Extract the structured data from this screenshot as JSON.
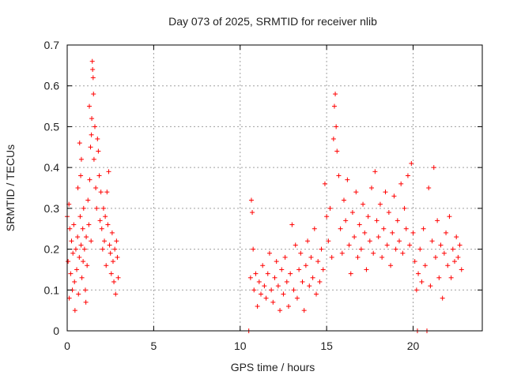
{
  "chart_data": {
    "type": "scatter",
    "title": "Day 073 of 2025, SRMTID for receiver nlib",
    "xlabel": "GPS time / hours",
    "ylabel": "SRMTID / TECUs",
    "xlim": [
      0,
      24
    ],
    "ylim": [
      0,
      0.7
    ],
    "grid": true,
    "marker": "+",
    "series_color": "#ff0000",
    "x_ticks": [
      {
        "value": 0,
        "label": "0"
      },
      {
        "value": 5,
        "label": "5"
      },
      {
        "value": 10,
        "label": "10"
      },
      {
        "value": 15,
        "label": "15"
      },
      {
        "value": 20,
        "label": "20"
      }
    ],
    "y_ticks": [
      {
        "value": 0,
        "label": "0"
      },
      {
        "value": 0.1,
        "label": "0.1"
      },
      {
        "value": 0.2,
        "label": "0.2"
      },
      {
        "value": 0.3,
        "label": "0.3"
      },
      {
        "value": 0.4,
        "label": "0.4"
      },
      {
        "value": 0.5,
        "label": "0.5"
      },
      {
        "value": 0.6,
        "label": "0.6"
      },
      {
        "value": 0.7,
        "label": "0.7"
      }
    ],
    "points": [
      [
        0.0,
        0.28
      ],
      [
        0.05,
        0.17
      ],
      [
        0.1,
        0.31
      ],
      [
        0.12,
        0.08
      ],
      [
        0.15,
        0.25
      ],
      [
        0.2,
        0.14
      ],
      [
        0.25,
        0.22
      ],
      [
        0.3,
        0.1
      ],
      [
        0.33,
        0.19
      ],
      [
        0.38,
        0.26
      ],
      [
        0.42,
        0.12
      ],
      [
        0.45,
        0.05
      ],
      [
        0.5,
        0.2
      ],
      [
        0.55,
        0.15
      ],
      [
        0.6,
        0.23
      ],
      [
        0.62,
        0.35
      ],
      [
        0.65,
        0.09
      ],
      [
        0.7,
        0.18
      ],
      [
        0.72,
        0.46
      ],
      [
        0.75,
        0.28
      ],
      [
        0.78,
        0.38
      ],
      [
        0.8,
        0.21
      ],
      [
        0.82,
        0.42
      ],
      [
        0.85,
        0.13
      ],
      [
        0.9,
        0.25
      ],
      [
        0.92,
        0.17
      ],
      [
        0.95,
        0.3
      ],
      [
        1.0,
        0.2
      ],
      [
        1.05,
        0.1
      ],
      [
        1.08,
        0.07
      ],
      [
        1.1,
        0.23
      ],
      [
        1.15,
        0.16
      ],
      [
        1.2,
        0.32
      ],
      [
        1.25,
        0.26
      ],
      [
        1.28,
        0.55
      ],
      [
        1.3,
        0.37
      ],
      [
        1.35,
        0.45
      ],
      [
        1.38,
        0.22
      ],
      [
        1.4,
        0.48
      ],
      [
        1.42,
        0.52
      ],
      [
        1.45,
        0.66
      ],
      [
        1.47,
        0.64
      ],
      [
        1.5,
        0.62
      ],
      [
        1.52,
        0.58
      ],
      [
        1.55,
        0.42
      ],
      [
        1.6,
        0.5
      ],
      [
        1.65,
        0.35
      ],
      [
        1.7,
        0.3
      ],
      [
        1.75,
        0.47
      ],
      [
        1.8,
        0.44
      ],
      [
        1.85,
        0.38
      ],
      [
        1.9,
        0.27
      ],
      [
        1.95,
        0.34
      ],
      [
        2.0,
        0.25
      ],
      [
        2.05,
        0.2
      ],
      [
        2.1,
        0.3
      ],
      [
        2.15,
        0.22
      ],
      [
        2.2,
        0.28
      ],
      [
        2.25,
        0.16
      ],
      [
        2.3,
        0.34
      ],
      [
        2.35,
        0.26
      ],
      [
        2.4,
        0.39
      ],
      [
        2.45,
        0.21
      ],
      [
        2.5,
        0.19
      ],
      [
        2.55,
        0.14
      ],
      [
        2.6,
        0.24
      ],
      [
        2.65,
        0.17
      ],
      [
        2.7,
        0.12
      ],
      [
        2.75,
        0.2
      ],
      [
        2.8,
        0.09
      ],
      [
        2.85,
        0.22
      ],
      [
        2.9,
        0.18
      ],
      [
        2.95,
        0.13
      ],
      [
        10.5,
        0.0
      ],
      [
        10.6,
        0.13
      ],
      [
        10.65,
        0.32
      ],
      [
        10.7,
        0.29
      ],
      [
        10.75,
        0.2
      ],
      [
        10.8,
        0.1
      ],
      [
        10.9,
        0.14
      ],
      [
        11.0,
        0.06
      ],
      [
        11.1,
        0.12
      ],
      [
        11.2,
        0.09
      ],
      [
        11.3,
        0.16
      ],
      [
        11.4,
        0.11
      ],
      [
        11.5,
        0.08
      ],
      [
        11.6,
        0.14
      ],
      [
        11.7,
        0.19
      ],
      [
        11.8,
        0.1
      ],
      [
        11.9,
        0.07
      ],
      [
        12.0,
        0.13
      ],
      [
        12.1,
        0.17
      ],
      [
        12.2,
        0.11
      ],
      [
        12.3,
        0.05
      ],
      [
        12.4,
        0.15
      ],
      [
        12.5,
        0.09
      ],
      [
        12.6,
        0.18
      ],
      [
        12.7,
        0.12
      ],
      [
        12.8,
        0.06
      ],
      [
        12.9,
        0.14
      ],
      [
        13.0,
        0.26
      ],
      [
        13.1,
        0.1
      ],
      [
        13.2,
        0.21
      ],
      [
        13.3,
        0.08
      ],
      [
        13.4,
        0.15
      ],
      [
        13.5,
        0.19
      ],
      [
        13.6,
        0.12
      ],
      [
        13.7,
        0.05
      ],
      [
        13.8,
        0.16
      ],
      [
        13.9,
        0.22
      ],
      [
        14.0,
        0.11
      ],
      [
        14.1,
        0.18
      ],
      [
        14.2,
        0.13
      ],
      [
        14.3,
        0.25
      ],
      [
        14.4,
        0.09
      ],
      [
        14.5,
        0.17
      ],
      [
        14.6,
        0.12
      ],
      [
        14.7,
        0.2
      ],
      [
        14.8,
        0.15
      ],
      [
        14.9,
        0.36
      ],
      [
        15.0,
        0.28
      ],
      [
        15.1,
        0.22
      ],
      [
        15.2,
        0.3
      ],
      [
        15.3,
        0.18
      ],
      [
        15.4,
        0.47
      ],
      [
        15.45,
        0.55
      ],
      [
        15.5,
        0.58
      ],
      [
        15.55,
        0.5
      ],
      [
        15.6,
        0.44
      ],
      [
        15.7,
        0.38
      ],
      [
        15.8,
        0.25
      ],
      [
        15.9,
        0.19
      ],
      [
        16.0,
        0.32
      ],
      [
        16.1,
        0.27
      ],
      [
        16.2,
        0.37
      ],
      [
        16.3,
        0.21
      ],
      [
        16.4,
        0.14
      ],
      [
        16.5,
        0.29
      ],
      [
        16.6,
        0.23
      ],
      [
        16.7,
        0.34
      ],
      [
        16.8,
        0.18
      ],
      [
        16.9,
        0.26
      ],
      [
        17.0,
        0.2
      ],
      [
        17.1,
        0.31
      ],
      [
        17.2,
        0.24
      ],
      [
        17.3,
        0.15
      ],
      [
        17.4,
        0.28
      ],
      [
        17.5,
        0.22
      ],
      [
        17.6,
        0.35
      ],
      [
        17.7,
        0.19
      ],
      [
        17.8,
        0.39
      ],
      [
        17.9,
        0.27
      ],
      [
        18.0,
        0.23
      ],
      [
        18.1,
        0.31
      ],
      [
        18.2,
        0.18
      ],
      [
        18.3,
        0.25
      ],
      [
        18.4,
        0.34
      ],
      [
        18.5,
        0.21
      ],
      [
        18.6,
        0.29
      ],
      [
        18.7,
        0.16
      ],
      [
        18.8,
        0.24
      ],
      [
        18.9,
        0.33
      ],
      [
        19.0,
        0.2
      ],
      [
        19.1,
        0.27
      ],
      [
        19.2,
        0.22
      ],
      [
        19.3,
        0.36
      ],
      [
        19.4,
        0.19
      ],
      [
        19.5,
        0.3
      ],
      [
        19.6,
        0.25
      ],
      [
        19.7,
        0.38
      ],
      [
        19.8,
        0.21
      ],
      [
        19.9,
        0.41
      ],
      [
        20.0,
        0.24
      ],
      [
        20.1,
        0.17
      ],
      [
        20.2,
        0.1
      ],
      [
        20.25,
        0.0
      ],
      [
        20.3,
        0.14
      ],
      [
        20.4,
        0.2
      ],
      [
        20.5,
        0.12
      ],
      [
        20.6,
        0.25
      ],
      [
        20.7,
        0.16
      ],
      [
        20.8,
        0.0
      ],
      [
        20.9,
        0.35
      ],
      [
        21.0,
        0.11
      ],
      [
        21.1,
        0.22
      ],
      [
        21.2,
        0.4
      ],
      [
        21.3,
        0.18
      ],
      [
        21.4,
        0.27
      ],
      [
        21.5,
        0.13
      ],
      [
        21.6,
        0.21
      ],
      [
        21.7,
        0.08
      ],
      [
        21.8,
        0.19
      ],
      [
        21.9,
        0.24
      ],
      [
        22.0,
        0.16
      ],
      [
        22.1,
        0.28
      ],
      [
        22.2,
        0.13
      ],
      [
        22.3,
        0.2
      ],
      [
        22.4,
        0.17
      ],
      [
        22.5,
        0.23
      ],
      [
        22.6,
        0.18
      ],
      [
        22.7,
        0.21
      ],
      [
        22.8,
        0.15
      ]
    ]
  }
}
